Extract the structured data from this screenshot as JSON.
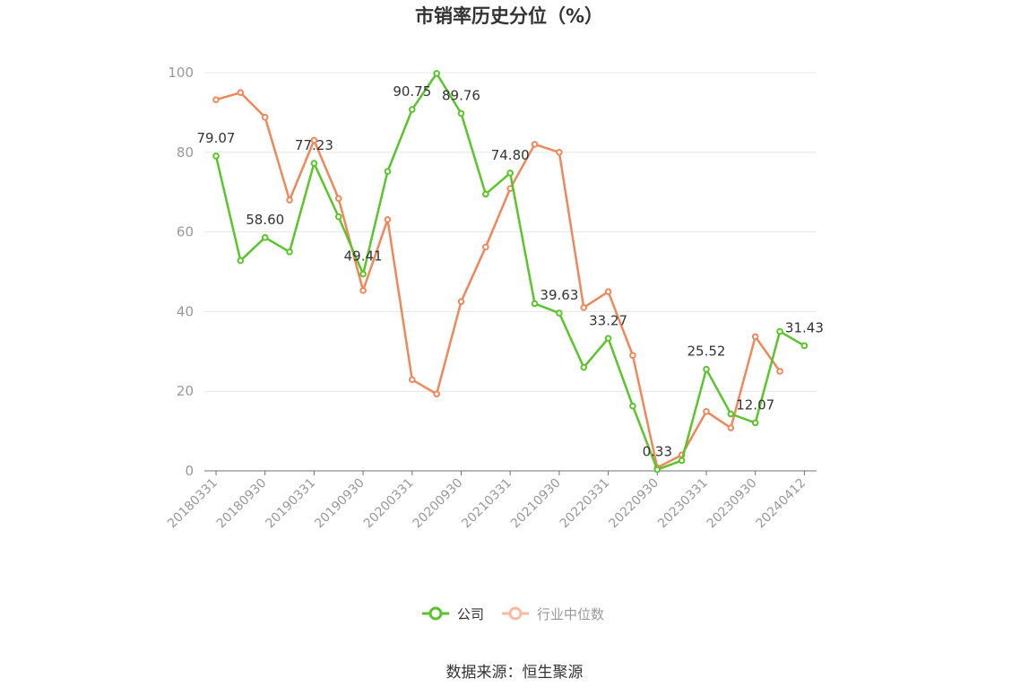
{
  "chart_data": {
    "type": "line",
    "title": "市销率历史分位（%）",
    "ylim": [
      0,
      100
    ],
    "y_ticks": [
      0,
      20,
      40,
      60,
      80,
      100
    ],
    "x": [
      "20180331",
      "20180630",
      "20180930",
      "20181231",
      "20190331",
      "20190630",
      "20190930",
      "20191231",
      "20200331",
      "20200630",
      "20200930",
      "20201231",
      "20210331",
      "20210630",
      "20210930",
      "20211231",
      "20220331",
      "20220630",
      "20220930",
      "20221231",
      "20230331",
      "20230630",
      "20230930",
      "20231231",
      "20240412"
    ],
    "x_tick_labels": [
      "20180331",
      "20180930",
      "20190331",
      "20190930",
      "20200331",
      "20200930",
      "20210331",
      "20210930",
      "20220331",
      "20220930",
      "20230331",
      "20230930",
      "20240412"
    ],
    "series": [
      {
        "name": "公司",
        "color": "#5ac52a",
        "values": [
          79.07,
          52.8,
          58.6,
          55.0,
          77.23,
          63.8,
          49.41,
          75.2,
          90.75,
          99.8,
          89.76,
          69.5,
          74.8,
          42.0,
          39.63,
          26.0,
          33.27,
          16.3,
          0.33,
          2.6,
          25.52,
          14.3,
          12.07,
          35.0,
          31.43
        ],
        "labels": {
          "0": "79.07",
          "2": "58.60",
          "4": "77.23",
          "6": "49.41",
          "8": "90.75",
          "10": "89.76",
          "12": "74.80",
          "14": "39.63",
          "16": "33.27",
          "18": "0.33",
          "20": "25.52",
          "22": "12.07",
          "24": "31.43"
        }
      },
      {
        "name": "行业中位数",
        "color": "#f0875a",
        "values": [
          93.2,
          95.0,
          88.8,
          68.0,
          83.0,
          68.4,
          45.3,
          63.1,
          22.9,
          19.3,
          42.5,
          56.2,
          70.9,
          82.0,
          80.0,
          41.0,
          45.0,
          29.0,
          0.8,
          4.0,
          14.9,
          10.8,
          33.7,
          25.0,
          null
        ]
      }
    ],
    "legend_position": "bottom",
    "grid": true
  },
  "source_text": "数据来源：恒生聚源"
}
